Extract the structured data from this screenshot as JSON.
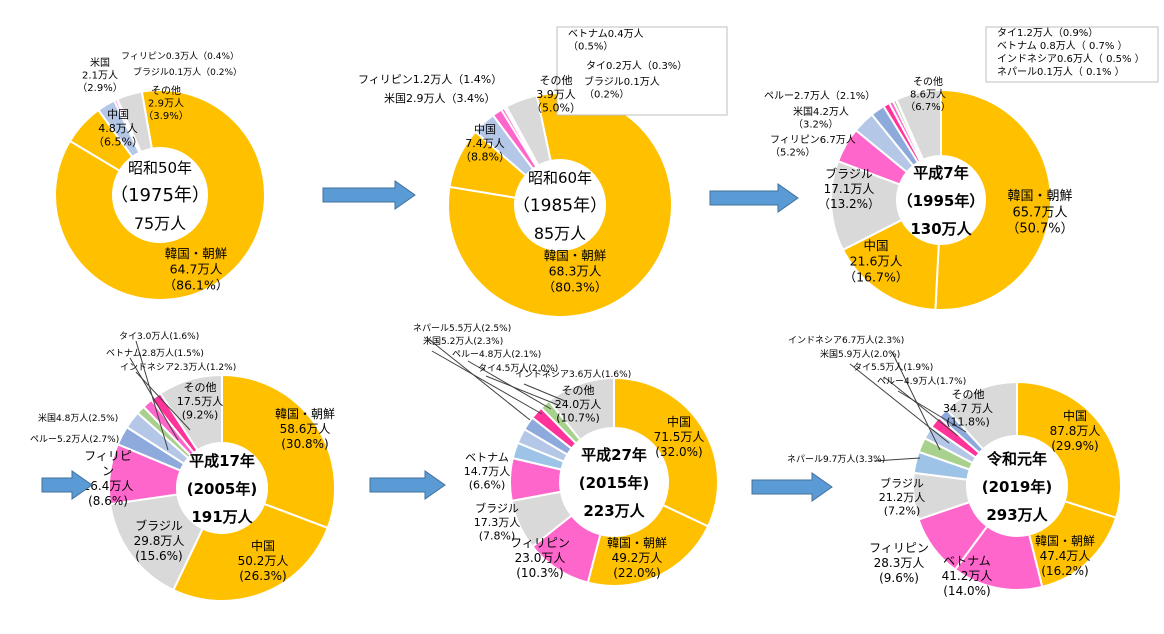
{
  "palette": {
    "韓国・朝鮮": "#FFC000",
    "中国": "#FFC000",
    "ブラジル": "#D9D9D9",
    "フィリピン": "#FF66CC",
    "米国": "#B4C7E7",
    "ベトナム": "#FF66CC",
    "ペルー": "#8EA9DB",
    "タイ": "#FF3399",
    "インドネシア": "#A9D18E",
    "ネパール": "#9DC3E6",
    "その他": "#D9D9D9",
    "segment_stroke": "#FFFFFF",
    "arrow": "#5B9BD5"
  },
  "chart_data": [
    {
      "type": "pie",
      "center_lines": [
        "昭和50年",
        "（1975年）",
        "75万人"
      ],
      "slices": [
        {
          "name": "韓国・朝鮮",
          "value": 64.7,
          "label_lines": [
            "韓国・朝鮮",
            "64.7万人",
            "（86.1%）"
          ]
        },
        {
          "name": "中国",
          "value": 4.8,
          "label_lines": [
            "中国",
            "4.8万人",
            "（6.5%）"
          ]
        },
        {
          "name": "米国",
          "value": 2.1,
          "label_lines": [
            "米国",
            "2.1万人",
            "（2.9%）"
          ]
        },
        {
          "name": "フィリピン",
          "value": 0.3,
          "label_lines": [
            "フィリピン0.3万人（0.4%）"
          ]
        },
        {
          "name": "ブラジル",
          "value": 0.1,
          "label_lines": [
            "ブラジル0.1万人（0.2%）"
          ]
        },
        {
          "name": "その他",
          "value": 2.9,
          "label_lines": [
            "その他",
            "2.9万人",
            "（3.9%）"
          ]
        }
      ]
    },
    {
      "type": "pie",
      "center_lines": [
        "昭和60年",
        "（1985年）",
        "85万人"
      ],
      "slices": [
        {
          "name": "韓国・朝鮮",
          "value": 68.3,
          "label_lines": [
            "韓国・朝鮮",
            "68.3万人",
            "（80.3%）"
          ]
        },
        {
          "name": "中国",
          "value": 7.4,
          "label_lines": [
            "中国",
            "7.4万人",
            "（8.8%）"
          ]
        },
        {
          "name": "米国",
          "value": 2.9,
          "label_lines": [
            "米国2.9万人（3.4%）"
          ]
        },
        {
          "name": "フィリピン",
          "value": 1.2,
          "label_lines": [
            "フィリピン1.2万人（1.4%）"
          ]
        },
        {
          "name": "ベトナム",
          "value": 0.4,
          "label_lines": [
            "ベトナム0.4万人",
            "（0.5%）"
          ]
        },
        {
          "name": "タイ",
          "value": 0.2,
          "label_lines": [
            "タイ0.2万人（0.3%）"
          ]
        },
        {
          "name": "ブラジル",
          "value": 0.1,
          "label_lines": [
            "ブラジル0.1万人",
            "（0.2%）"
          ]
        },
        {
          "name": "その他",
          "value": 3.9,
          "label_lines": [
            "その他",
            "3.9万人",
            "（5.0%）"
          ]
        }
      ]
    },
    {
      "type": "pie",
      "center_lines": [
        "平成7年",
        "（1995年）",
        "130万人"
      ],
      "slices": [
        {
          "name": "韓国・朝鮮",
          "value": 65.7,
          "label_lines": [
            "韓国・朝鮮",
            "65.7万人",
            "（50.7%）"
          ]
        },
        {
          "name": "中国",
          "value": 21.6,
          "label_lines": [
            "中国",
            "21.6万人",
            "（16.7%）"
          ]
        },
        {
          "name": "ブラジル",
          "value": 17.1,
          "label_lines": [
            "ブラジル",
            "17.1万人",
            "（13.2%）"
          ]
        },
        {
          "name": "フィリピン",
          "value": 6.7,
          "label_lines": [
            "フィリピン6.7万人",
            "（5.2%）"
          ]
        },
        {
          "name": "米国",
          "value": 4.2,
          "label_lines": [
            "米国4.2万人",
            "（3.2%）"
          ]
        },
        {
          "name": "ペルー",
          "value": 2.7,
          "label_lines": [
            "ペルー2.7万人（2.1%）"
          ]
        },
        {
          "name": "タイ",
          "value": 1.2,
          "label_lines": [
            "タイ1.2万人（0.9%）"
          ]
        },
        {
          "name": "ベトナム",
          "value": 0.8,
          "label_lines": [
            "ベトナム 0.8万人（ 0.7% ）"
          ]
        },
        {
          "name": "インドネシア",
          "value": 0.6,
          "label_lines": [
            "インドネシア0.6万人（ 0.5% ）"
          ]
        },
        {
          "name": "ネパール",
          "value": 0.1,
          "label_lines": [
            "ネパール0.1万人（ 0.1% ）"
          ]
        },
        {
          "name": "その他",
          "value": 8.6,
          "label_lines": [
            "その他",
            "8.6万人",
            "（6.7%）"
          ]
        }
      ]
    },
    {
      "type": "pie",
      "center_lines": [
        "平成17年",
        "(2005年)",
        "191万人"
      ],
      "slices": [
        {
          "name": "韓国・朝鮮",
          "value": 58.6,
          "label_lines": [
            "韓国・朝鮮",
            "58.6万人",
            "(30.8%)"
          ]
        },
        {
          "name": "中国",
          "value": 50.2,
          "label_lines": [
            "中国",
            "50.2万人",
            "(26.3%)"
          ]
        },
        {
          "name": "ブラジル",
          "value": 29.8,
          "label_lines": [
            "ブラジル",
            "29.8万人",
            "(15.6%)"
          ]
        },
        {
          "name": "フィリピン",
          "value": 16.4,
          "label_lines": [
            "フィリピ",
            "ン",
            "16.4万人",
            "(8.6%)"
          ]
        },
        {
          "name": "ペルー",
          "value": 5.2,
          "label_lines": [
            "ペルー5.2万人(2.7%)"
          ]
        },
        {
          "name": "米国",
          "value": 4.8,
          "label_lines": [
            "米国4.8万人(2.5%)"
          ]
        },
        {
          "name": "インドネシア",
          "value": 2.3,
          "label_lines": [
            "インドネシア2.3万人(1.2%)"
          ]
        },
        {
          "name": "ベトナム",
          "value": 2.8,
          "label_lines": [
            "ベトナム2.8万人(1.5%)"
          ]
        },
        {
          "name": "タイ",
          "value": 3.0,
          "label_lines": [
            "タイ3.0万人(1.6%)"
          ]
        },
        {
          "name": "その他",
          "value": 17.5,
          "label_lines": [
            "その他",
            "17.5万人",
            "(9.2%)"
          ]
        }
      ]
    },
    {
      "type": "pie",
      "center_lines": [
        "平成27年",
        "(2015年)",
        "223万人"
      ],
      "slices": [
        {
          "name": "中国",
          "value": 71.5,
          "label_lines": [
            "中国",
            "71.5万人",
            "(32.0%)"
          ]
        },
        {
          "name": "韓国・朝鮮",
          "value": 49.2,
          "label_lines": [
            "韓国・朝鮮",
            "49.2万人",
            "(22.0%)"
          ]
        },
        {
          "name": "フィリピン",
          "value": 23.0,
          "label_lines": [
            "フィリピン",
            "23.0万人",
            "(10.3%)"
          ]
        },
        {
          "name": "ブラジル",
          "value": 17.3,
          "label_lines": [
            "ブラジル",
            "17.3万人",
            "(7.8%)"
          ]
        },
        {
          "name": "ベトナム",
          "value": 14.7,
          "label_lines": [
            "ベトナム",
            "14.7万人",
            "(6.6%)"
          ]
        },
        {
          "name": "ネパール",
          "value": 5.5,
          "label_lines": [
            "ネパール5.5万人(2.5%)"
          ]
        },
        {
          "name": "米国",
          "value": 5.2,
          "label_lines": [
            "米国5.2万人(2.3%)"
          ]
        },
        {
          "name": "ペルー",
          "value": 4.8,
          "label_lines": [
            "ペルー4.8万人(2.1%)"
          ]
        },
        {
          "name": "タイ",
          "value": 4.5,
          "label_lines": [
            "タイ4.5万人(2.0%)"
          ]
        },
        {
          "name": "インドネシア",
          "value": 3.6,
          "label_lines": [
            "インドネシア3.6万人(1.6%)"
          ]
        },
        {
          "name": "その他",
          "value": 24.0,
          "label_lines": [
            "その他",
            "24.0万人",
            "(10.7%)"
          ]
        }
      ]
    },
    {
      "type": "pie",
      "center_lines": [
        "令和元年",
        "(2019年)",
        "293万人"
      ],
      "slices": [
        {
          "name": "中国",
          "value": 87.8,
          "label_lines": [
            "中国",
            "87.8万人",
            "(29.9%)"
          ]
        },
        {
          "name": "韓国・朝鮮",
          "value": 47.4,
          "label_lines": [
            "韓国・朝鮮",
            "47.4万人",
            "(16.2%)"
          ]
        },
        {
          "name": "ベトナム",
          "value": 41.2,
          "label_lines": [
            "ベトナム",
            "41.2万人",
            "(14.0%)"
          ]
        },
        {
          "name": "フィリピン",
          "value": 28.3,
          "label_lines": [
            "フィリピン",
            "28.3万人",
            "(9.6%)"
          ]
        },
        {
          "name": "ブラジル",
          "value": 21.2,
          "label_lines": [
            "ブラジル",
            "21.2万人",
            "(7.2%)"
          ]
        },
        {
          "name": "ネパール",
          "value": 9.7,
          "label_lines": [
            "ネパール9.7万人(3.3%)"
          ]
        },
        {
          "name": "インドネシア",
          "value": 6.7,
          "label_lines": [
            "インドネシア6.7万人(2.3%)"
          ]
        },
        {
          "name": "米国",
          "value": 5.9,
          "label_lines": [
            "米国5.9万人(2.0%)"
          ]
        },
        {
          "name": "タイ",
          "value": 5.5,
          "label_lines": [
            "タイ5.5万人(1.9%)"
          ]
        },
        {
          "name": "ペルー",
          "value": 4.9,
          "label_lines": [
            "ペルー4.9万人(1.7%)"
          ]
        },
        {
          "name": "その他",
          "value": 34.7,
          "label_lines": [
            "その他",
            "34.7 万人",
            "(11.8%)"
          ]
        }
      ]
    }
  ]
}
